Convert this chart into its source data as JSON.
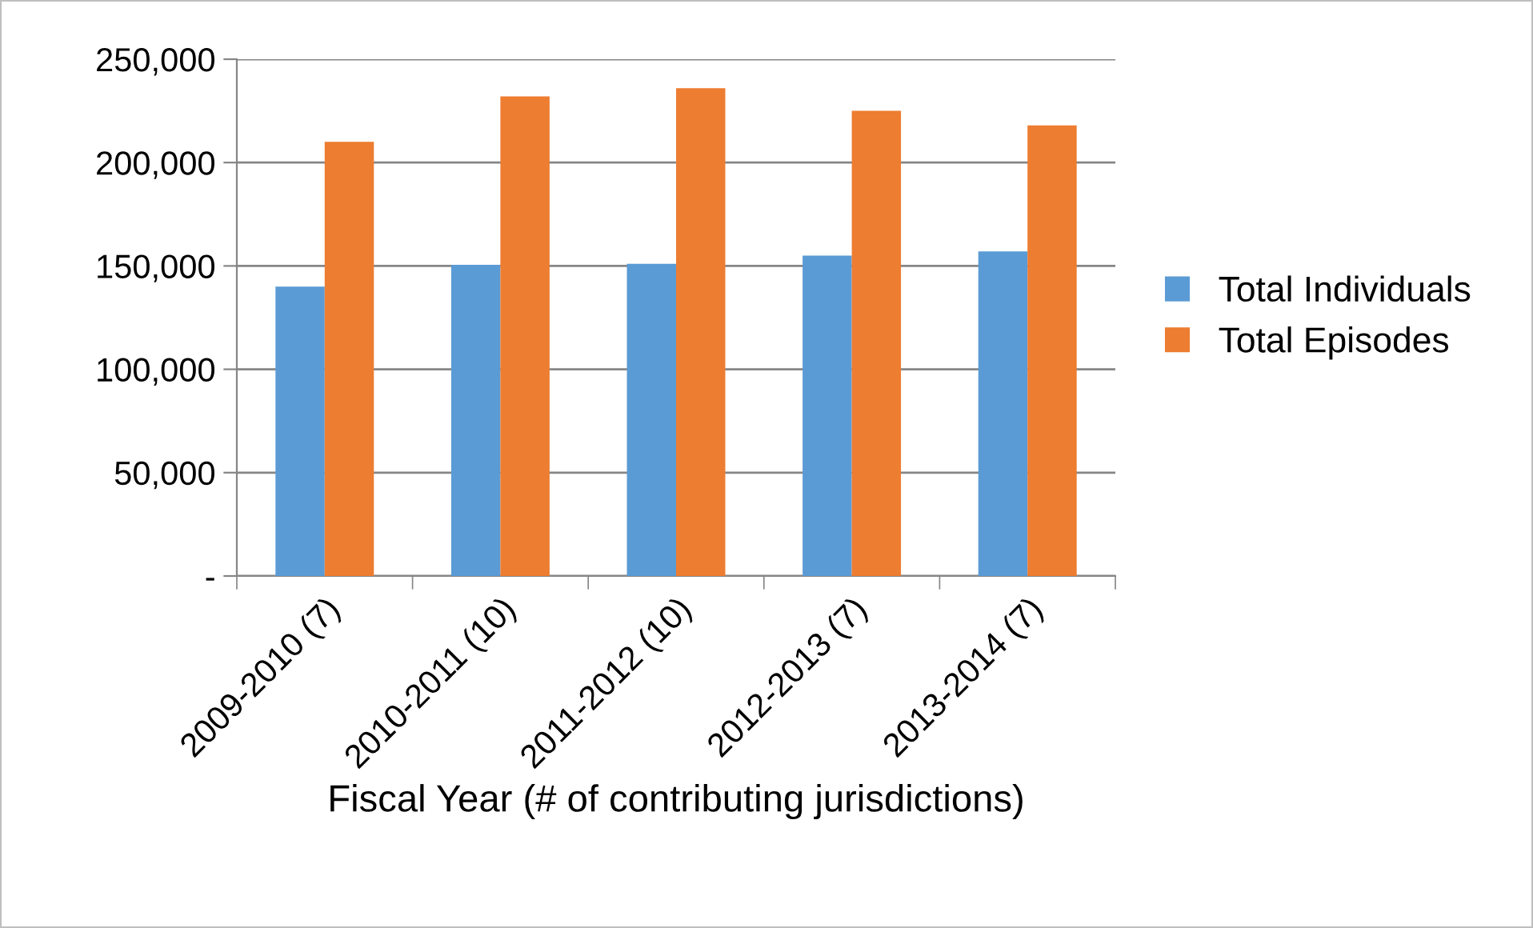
{
  "chart_data": {
    "type": "bar",
    "xlabel": "Fiscal Year (# of contributing jurisdictions)",
    "categories": [
      "2009-2010 (7)",
      "2010-2011 (10)",
      "2011-2012 (10)",
      "2012-2013 (7)",
      "2013-2014 (7)"
    ],
    "series": [
      {
        "name": "Total Individuals",
        "color": "#5b9bd5",
        "values": [
          140000,
          150500,
          151000,
          155000,
          157000
        ]
      },
      {
        "name": "Total Episodes",
        "color": "#ed7d31",
        "values": [
          210000,
          232000,
          236000,
          225000,
          218000
        ]
      }
    ],
    "ylim": [
      0,
      250000
    ],
    "yticks": [
      {
        "value": 0,
        "label": "-"
      },
      {
        "value": 50000,
        "label": "50,000"
      },
      {
        "value": 100000,
        "label": "100,000"
      },
      {
        "value": 150000,
        "label": "150,000"
      },
      {
        "value": 200000,
        "label": "200,000"
      },
      {
        "value": 250000,
        "label": "250,000"
      }
    ],
    "grid": "y",
    "legend": "right"
  }
}
